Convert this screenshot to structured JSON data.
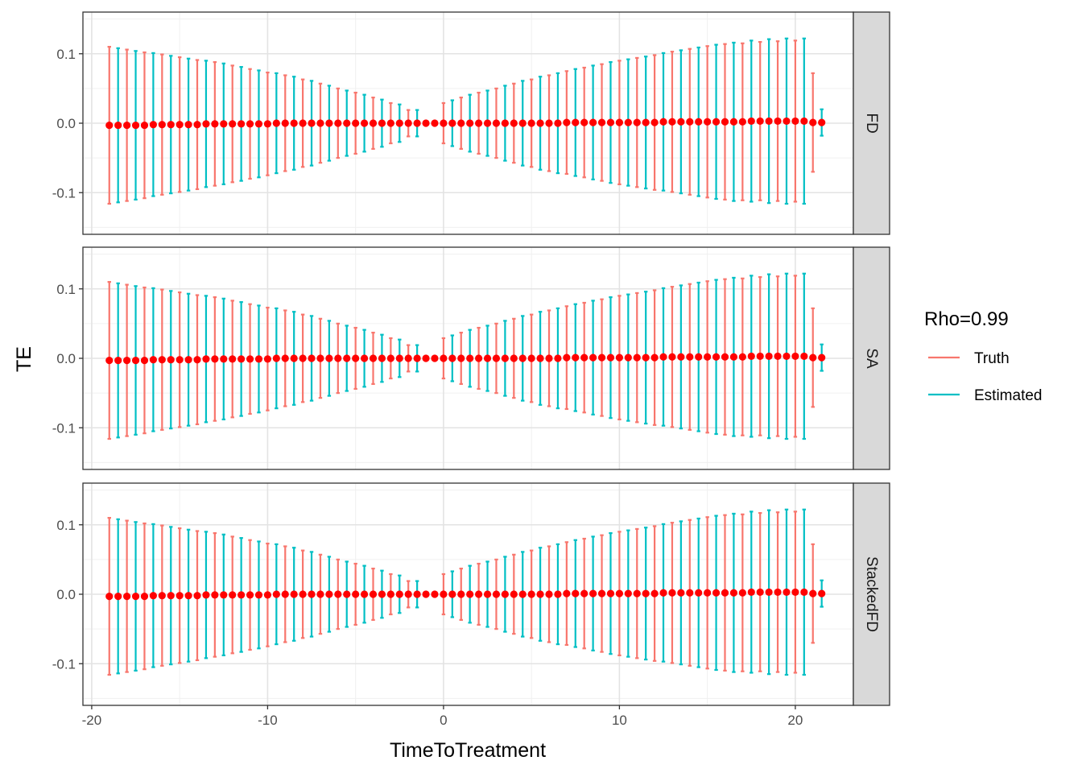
{
  "chart_data": {
    "type": "errorbar",
    "xlabel": "TimeToTreatment",
    "ylabel": "TE",
    "xlim": [
      -20.5,
      23.3
    ],
    "ylim": [
      -0.16,
      0.16
    ],
    "x_ticks": [
      -20,
      -10,
      0,
      10,
      20
    ],
    "x_tick_labels": [
      "-20",
      "-10",
      "0",
      "10",
      "20"
    ],
    "y_ticks": [
      0.1,
      0.0,
      -0.1
    ],
    "y_tick_labels": [
      "0.1",
      "0.0",
      "-0.1"
    ],
    "grid": true,
    "legend": {
      "title": "Rho=0.99",
      "position": "right",
      "entries": [
        {
          "label": "Truth",
          "color": "#F8766D"
        },
        {
          "label": "Estimated",
          "color": "#00BFC4"
        }
      ]
    },
    "point_color": "#FF0000",
    "facets": [
      "FD",
      "SA",
      "StackedFD"
    ],
    "series": [
      {
        "name": "Truth",
        "color": "#F8766D",
        "x": [
          -19,
          -18,
          -17,
          -16,
          -15,
          -14,
          -13,
          -12,
          -11,
          -10,
          -9,
          -8,
          -7,
          -6,
          -5,
          -4,
          -3,
          -2,
          -1,
          0,
          1,
          2,
          3,
          4,
          5,
          6,
          7,
          8,
          9,
          10,
          11,
          12,
          13,
          14,
          15,
          16,
          17,
          18,
          19,
          20,
          21
        ],
        "y": [
          -0.003,
          -0.003,
          -0.003,
          -0.002,
          -0.002,
          -0.002,
          -0.001,
          -0.001,
          -0.001,
          -0.001,
          0.0,
          0.0,
          0.0,
          0.0,
          0.0,
          0.0,
          0.0,
          0.0,
          0.0,
          0.0,
          0.0,
          0.0,
          0.0,
          0.0,
          0.0,
          0.0,
          0.001,
          0.001,
          0.001,
          0.001,
          0.001,
          0.001,
          0.002,
          0.002,
          0.002,
          0.002,
          0.002,
          0.003,
          0.003,
          0.003,
          0.001
        ],
        "half_width": [
          0.113,
          0.109,
          0.105,
          0.101,
          0.097,
          0.093,
          0.089,
          0.084,
          0.079,
          0.074,
          0.069,
          0.063,
          0.057,
          0.05,
          0.044,
          0.037,
          0.029,
          0.019,
          0.002,
          0.029,
          0.037,
          0.044,
          0.05,
          0.057,
          0.063,
          0.069,
          0.074,
          0.079,
          0.084,
          0.089,
          0.093,
          0.097,
          0.101,
          0.105,
          0.109,
          0.112,
          0.113,
          0.114,
          0.115,
          0.116,
          0.071
        ]
      },
      {
        "name": "Estimated",
        "color": "#00BFC4",
        "x": [
          -18.5,
          -17.5,
          -16.5,
          -15.5,
          -14.5,
          -13.5,
          -12.5,
          -11.5,
          -10.5,
          -9.5,
          -8.5,
          -7.5,
          -6.5,
          -5.5,
          -4.5,
          -3.5,
          -2.5,
          -1.5,
          -0.5,
          0.5,
          1.5,
          2.5,
          3.5,
          4.5,
          5.5,
          6.5,
          7.5,
          8.5,
          9.5,
          10.5,
          11.5,
          12.5,
          13.5,
          14.5,
          15.5,
          16.5,
          17.5,
          18.5,
          19.5,
          20.5,
          21.5
        ],
        "y": [
          -0.003,
          -0.003,
          -0.002,
          -0.002,
          -0.002,
          -0.001,
          -0.001,
          -0.001,
          -0.001,
          0.0,
          0.0,
          0.0,
          0.0,
          0.0,
          0.0,
          0.0,
          0.0,
          0.0,
          0.0,
          0.0,
          0.0,
          0.0,
          0.0,
          0.0,
          0.0,
          0.0,
          0.001,
          0.001,
          0.001,
          0.001,
          0.001,
          0.002,
          0.002,
          0.002,
          0.002,
          0.002,
          0.003,
          0.003,
          0.003,
          0.003,
          0.001
        ],
        "half_width": [
          0.111,
          0.107,
          0.103,
          0.099,
          0.095,
          0.091,
          0.087,
          0.082,
          0.077,
          0.072,
          0.067,
          0.061,
          0.054,
          0.047,
          0.041,
          0.034,
          0.027,
          0.019,
          0.0,
          0.033,
          0.041,
          0.047,
          0.054,
          0.061,
          0.067,
          0.072,
          0.077,
          0.082,
          0.087,
          0.091,
          0.095,
          0.099,
          0.103,
          0.107,
          0.111,
          0.114,
          0.116,
          0.118,
          0.119,
          0.119,
          0.019
        ]
      }
    ]
  }
}
